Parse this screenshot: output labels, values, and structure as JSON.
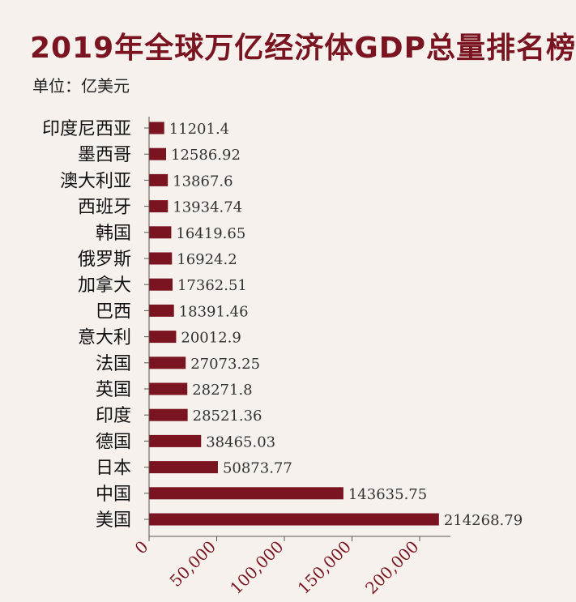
{
  "chart_data": {
    "type": "bar",
    "orientation": "horizontal",
    "title": "2019年全球万亿经济体GDP总量排名榜",
    "subtitle": "单位：亿美元",
    "categories": [
      "印度尼西亚",
      "墨西哥",
      "澳大利亚",
      "西班牙",
      "韩国",
      "俄罗斯",
      "加拿大",
      "巴西",
      "意大利",
      "法国",
      "英国",
      "印度",
      "德国",
      "日本",
      "中国",
      "美国"
    ],
    "values": [
      11201.4,
      12586.92,
      13867.6,
      13934.74,
      16419.65,
      16924.2,
      17362.51,
      18391.46,
      20012.9,
      27073.25,
      28271.8,
      28521.36,
      38465.03,
      50873.77,
      143635.75,
      214268.79
    ],
    "value_labels": [
      "11201.4",
      "12586.92",
      "13867.6",
      "13934.74",
      "16419.65",
      "16924.2",
      "17362.51",
      "18391.46",
      "20012.9",
      "27073.25",
      "28271.8",
      "28521.36",
      "38465.03",
      "50873.77",
      "143635.75",
      "214268.79"
    ],
    "x_ticks": [
      0,
      50000,
      100000,
      150000,
      200000
    ],
    "x_tick_labels": [
      "0",
      "50,000",
      "100,000",
      "150,000",
      "200,000"
    ],
    "xlim": [
      0,
      225000
    ],
    "bar_color": "#7a1420",
    "grid": false
  },
  "footer": {
    "left_text": "",
    "right_text": ""
  }
}
